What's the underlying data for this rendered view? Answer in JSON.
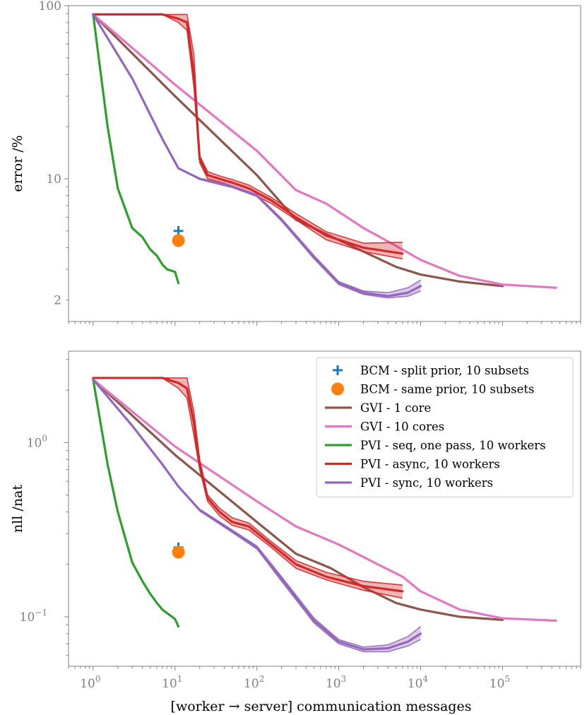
{
  "chart_data": [
    {
      "type": "line",
      "panel": "top",
      "title": "",
      "xlabel": "",
      "ylabel": "error /%",
      "xscale": "log",
      "yscale": "log",
      "xlim": [
        0.5,
        900000
      ],
      "ylim": [
        1.5,
        100
      ],
      "x_ticks": [
        {
          "value": 1,
          "base": "10",
          "exp": "0"
        },
        {
          "value": 10,
          "base": "10",
          "exp": "1"
        },
        {
          "value": 100,
          "base": "10",
          "exp": "2"
        },
        {
          "value": 1000,
          "base": "10",
          "exp": "3"
        },
        {
          "value": 10000,
          "base": "10",
          "exp": "4"
        },
        {
          "value": 100000,
          "base": "10",
          "exp": "5"
        }
      ],
      "show_x_tick_labels": false,
      "y_ticks": [
        {
          "value": 100,
          "label": "100"
        },
        {
          "value": 10,
          "label": "10"
        },
        {
          "value": 2,
          "label": "2"
        }
      ],
      "series": [
        {
          "name": "GVI - 1 core",
          "color": "#8c564b",
          "width": 3.2,
          "x": [
            1,
            10,
            100,
            300,
            700,
            2000,
            5000,
            10000,
            30000,
            100000
          ],
          "y": [
            89,
            30,
            10.5,
            5.8,
            4.8,
            3.8,
            3.1,
            2.8,
            2.55,
            2.4
          ]
        },
        {
          "name": "GVI - 10 cores",
          "color": "#e377c2",
          "width": 3.2,
          "x": [
            1,
            10,
            100,
            300,
            700,
            2000,
            5000,
            10000,
            30000,
            100000,
            450000
          ],
          "y": [
            89,
            35,
            14.5,
            8.6,
            7.2,
            5.2,
            4.1,
            3.4,
            2.75,
            2.45,
            2.35
          ]
        },
        {
          "name": "PVI - seq, one pass, 10 workers",
          "color": "#2ca02c",
          "width": 3.2,
          "x": [
            1,
            1.5,
            2,
            3,
            4,
            5,
            6,
            7,
            8,
            10,
            11
          ],
          "y": [
            89,
            20,
            8.8,
            5.2,
            4.6,
            3.9,
            3.6,
            3.2,
            3.0,
            2.9,
            2.5
          ]
        },
        {
          "name": "PVI - async, 10 workers",
          "color": "#d62728",
          "width": 3.2,
          "band": true,
          "band_color": "#d62728",
          "x": [
            1,
            7,
            11,
            14,
            17,
            20,
            25,
            35,
            50,
            80,
            150,
            300,
            700,
            2000,
            6000
          ],
          "y": [
            89,
            89,
            84,
            80,
            40,
            13,
            10.5,
            10,
            9.5,
            8.8,
            7.5,
            6,
            4.7,
            4.0,
            3.7
          ],
          "upper": [
            89,
            89,
            89,
            89,
            52,
            13.6,
            11,
            10.4,
            9.9,
            9.2,
            7.8,
            6.3,
            4.95,
            4.25,
            4.3
          ],
          "lower": [
            89,
            89,
            80,
            72,
            34,
            12.4,
            10,
            9.6,
            9.1,
            8.4,
            7.2,
            5.8,
            4.45,
            3.8,
            3.45
          ]
        },
        {
          "name": "PVI - sync, 10 workers",
          "color": "#9467bd",
          "width": 3.2,
          "band": true,
          "band_color": "#9467bd",
          "x": [
            1,
            3,
            7,
            11,
            20,
            50,
            100,
            200,
            500,
            1000,
            2000,
            4000,
            7000,
            10000
          ],
          "y": [
            89,
            38,
            17,
            11.5,
            10,
            9,
            8,
            5.8,
            3.5,
            2.5,
            2.2,
            2.1,
            2.2,
            2.4
          ],
          "upper": [
            89,
            38,
            17,
            11.5,
            10.1,
            9.1,
            8.1,
            5.9,
            3.6,
            2.55,
            2.25,
            2.2,
            2.35,
            2.6
          ],
          "lower": [
            89,
            38,
            17,
            11.5,
            9.9,
            8.9,
            7.9,
            5.7,
            3.45,
            2.45,
            2.15,
            2.05,
            2.1,
            2.25
          ]
        },
        {
          "name": "BCM - split prior, 10 subsets",
          "type": "scatter",
          "marker": "plus",
          "color": "#1f77b4",
          "x": [
            11
          ],
          "y": [
            5.0
          ]
        },
        {
          "name": "BCM - same prior, 10 subsets",
          "type": "scatter",
          "marker": "circle",
          "color": "#ff7f0e",
          "x": [
            11
          ],
          "y": [
            4.4
          ]
        }
      ]
    },
    {
      "type": "line",
      "panel": "bottom",
      "title": "",
      "xlabel": "[worker → server] communication messages",
      "ylabel": "nll /nat",
      "xscale": "log",
      "yscale": "log",
      "xlim": [
        0.5,
        900000
      ],
      "ylim": [
        0.052,
        3.35
      ],
      "x_ticks": [
        {
          "value": 1,
          "base": "10",
          "exp": "0"
        },
        {
          "value": 10,
          "base": "10",
          "exp": "1"
        },
        {
          "value": 100,
          "base": "10",
          "exp": "2"
        },
        {
          "value": 1000,
          "base": "10",
          "exp": "3"
        },
        {
          "value": 10000,
          "base": "10",
          "exp": "4"
        },
        {
          "value": 100000,
          "base": "10",
          "exp": "5"
        }
      ],
      "show_x_tick_labels": true,
      "y_ticks": [
        {
          "value": 1,
          "base": "10",
          "exp": "0"
        },
        {
          "value": 0.1,
          "base": "10",
          "exp": "−1"
        }
      ],
      "legend": {
        "loc": "upper right"
      },
      "series": [
        {
          "name": "BCM - split prior, 10 subsets",
          "type": "scatter",
          "marker": "plus",
          "color": "#1f77b4",
          "x": [
            11
          ],
          "y": [
            0.25
          ]
        },
        {
          "name": "BCM - same prior, 10 subsets",
          "type": "scatter",
          "marker": "circle",
          "color": "#ff7f0e",
          "x": [
            11
          ],
          "y": [
            0.235
          ]
        },
        {
          "name": "GVI - 1 core",
          "color": "#8c564b",
          "width": 3.2,
          "x": [
            1,
            10,
            100,
            300,
            800,
            2000,
            5000,
            10000,
            30000,
            100000
          ],
          "y": [
            2.3,
            0.85,
            0.35,
            0.23,
            0.19,
            0.148,
            0.12,
            0.11,
            0.1,
            0.096
          ]
        },
        {
          "name": "GVI - 10 cores",
          "color": "#e377c2",
          "width": 3.2,
          "x": [
            1,
            10,
            100,
            300,
            1000,
            3000,
            6000,
            10000,
            30000,
            100000,
            450000
          ],
          "y": [
            2.3,
            0.95,
            0.46,
            0.33,
            0.26,
            0.2,
            0.17,
            0.14,
            0.11,
            0.098,
            0.095
          ]
        },
        {
          "name": "PVI - seq, one pass, 10 workers",
          "color": "#2ca02c",
          "width": 3.2,
          "x": [
            1,
            1.5,
            2,
            3,
            4,
            5,
            6,
            7,
            8,
            10,
            11
          ],
          "y": [
            2.3,
            0.75,
            0.4,
            0.205,
            0.16,
            0.135,
            0.12,
            0.11,
            0.105,
            0.097,
            0.088
          ]
        },
        {
          "name": "PVI - async, 10 workers",
          "color": "#d62728",
          "width": 3.2,
          "band": true,
          "band_color": "#d62728",
          "x": [
            1,
            7,
            11,
            14,
            17,
            20,
            25,
            35,
            50,
            80,
            150,
            300,
            700,
            2000,
            6000
          ],
          "y": [
            2.35,
            2.35,
            2.2,
            2.05,
            1.3,
            0.75,
            0.48,
            0.4,
            0.35,
            0.33,
            0.26,
            0.2,
            0.17,
            0.15,
            0.14
          ],
          "upper": [
            2.35,
            2.35,
            2.35,
            2.35,
            1.5,
            0.8,
            0.5,
            0.42,
            0.37,
            0.345,
            0.27,
            0.21,
            0.18,
            0.16,
            0.152
          ],
          "lower": [
            2.35,
            2.35,
            2.05,
            1.8,
            1.1,
            0.7,
            0.46,
            0.38,
            0.335,
            0.315,
            0.25,
            0.19,
            0.163,
            0.142,
            0.128
          ]
        },
        {
          "name": "PVI - sync, 10 workers",
          "color": "#9467bd",
          "width": 3.2,
          "band": true,
          "band_color": "#9467bd",
          "x": [
            1,
            3,
            7,
            11,
            20,
            50,
            100,
            200,
            500,
            1000,
            2000,
            4000,
            7000,
            10000
          ],
          "y": [
            2.3,
            1.25,
            0.75,
            0.56,
            0.41,
            0.31,
            0.25,
            0.165,
            0.095,
            0.072,
            0.065,
            0.066,
            0.072,
            0.08
          ],
          "upper": [
            2.3,
            1.25,
            0.75,
            0.56,
            0.415,
            0.315,
            0.255,
            0.17,
            0.098,
            0.074,
            0.067,
            0.069,
            0.077,
            0.088
          ],
          "lower": [
            2.3,
            1.25,
            0.75,
            0.56,
            0.405,
            0.305,
            0.245,
            0.16,
            0.092,
            0.07,
            0.063,
            0.063,
            0.068,
            0.074
          ]
        }
      ]
    }
  ]
}
